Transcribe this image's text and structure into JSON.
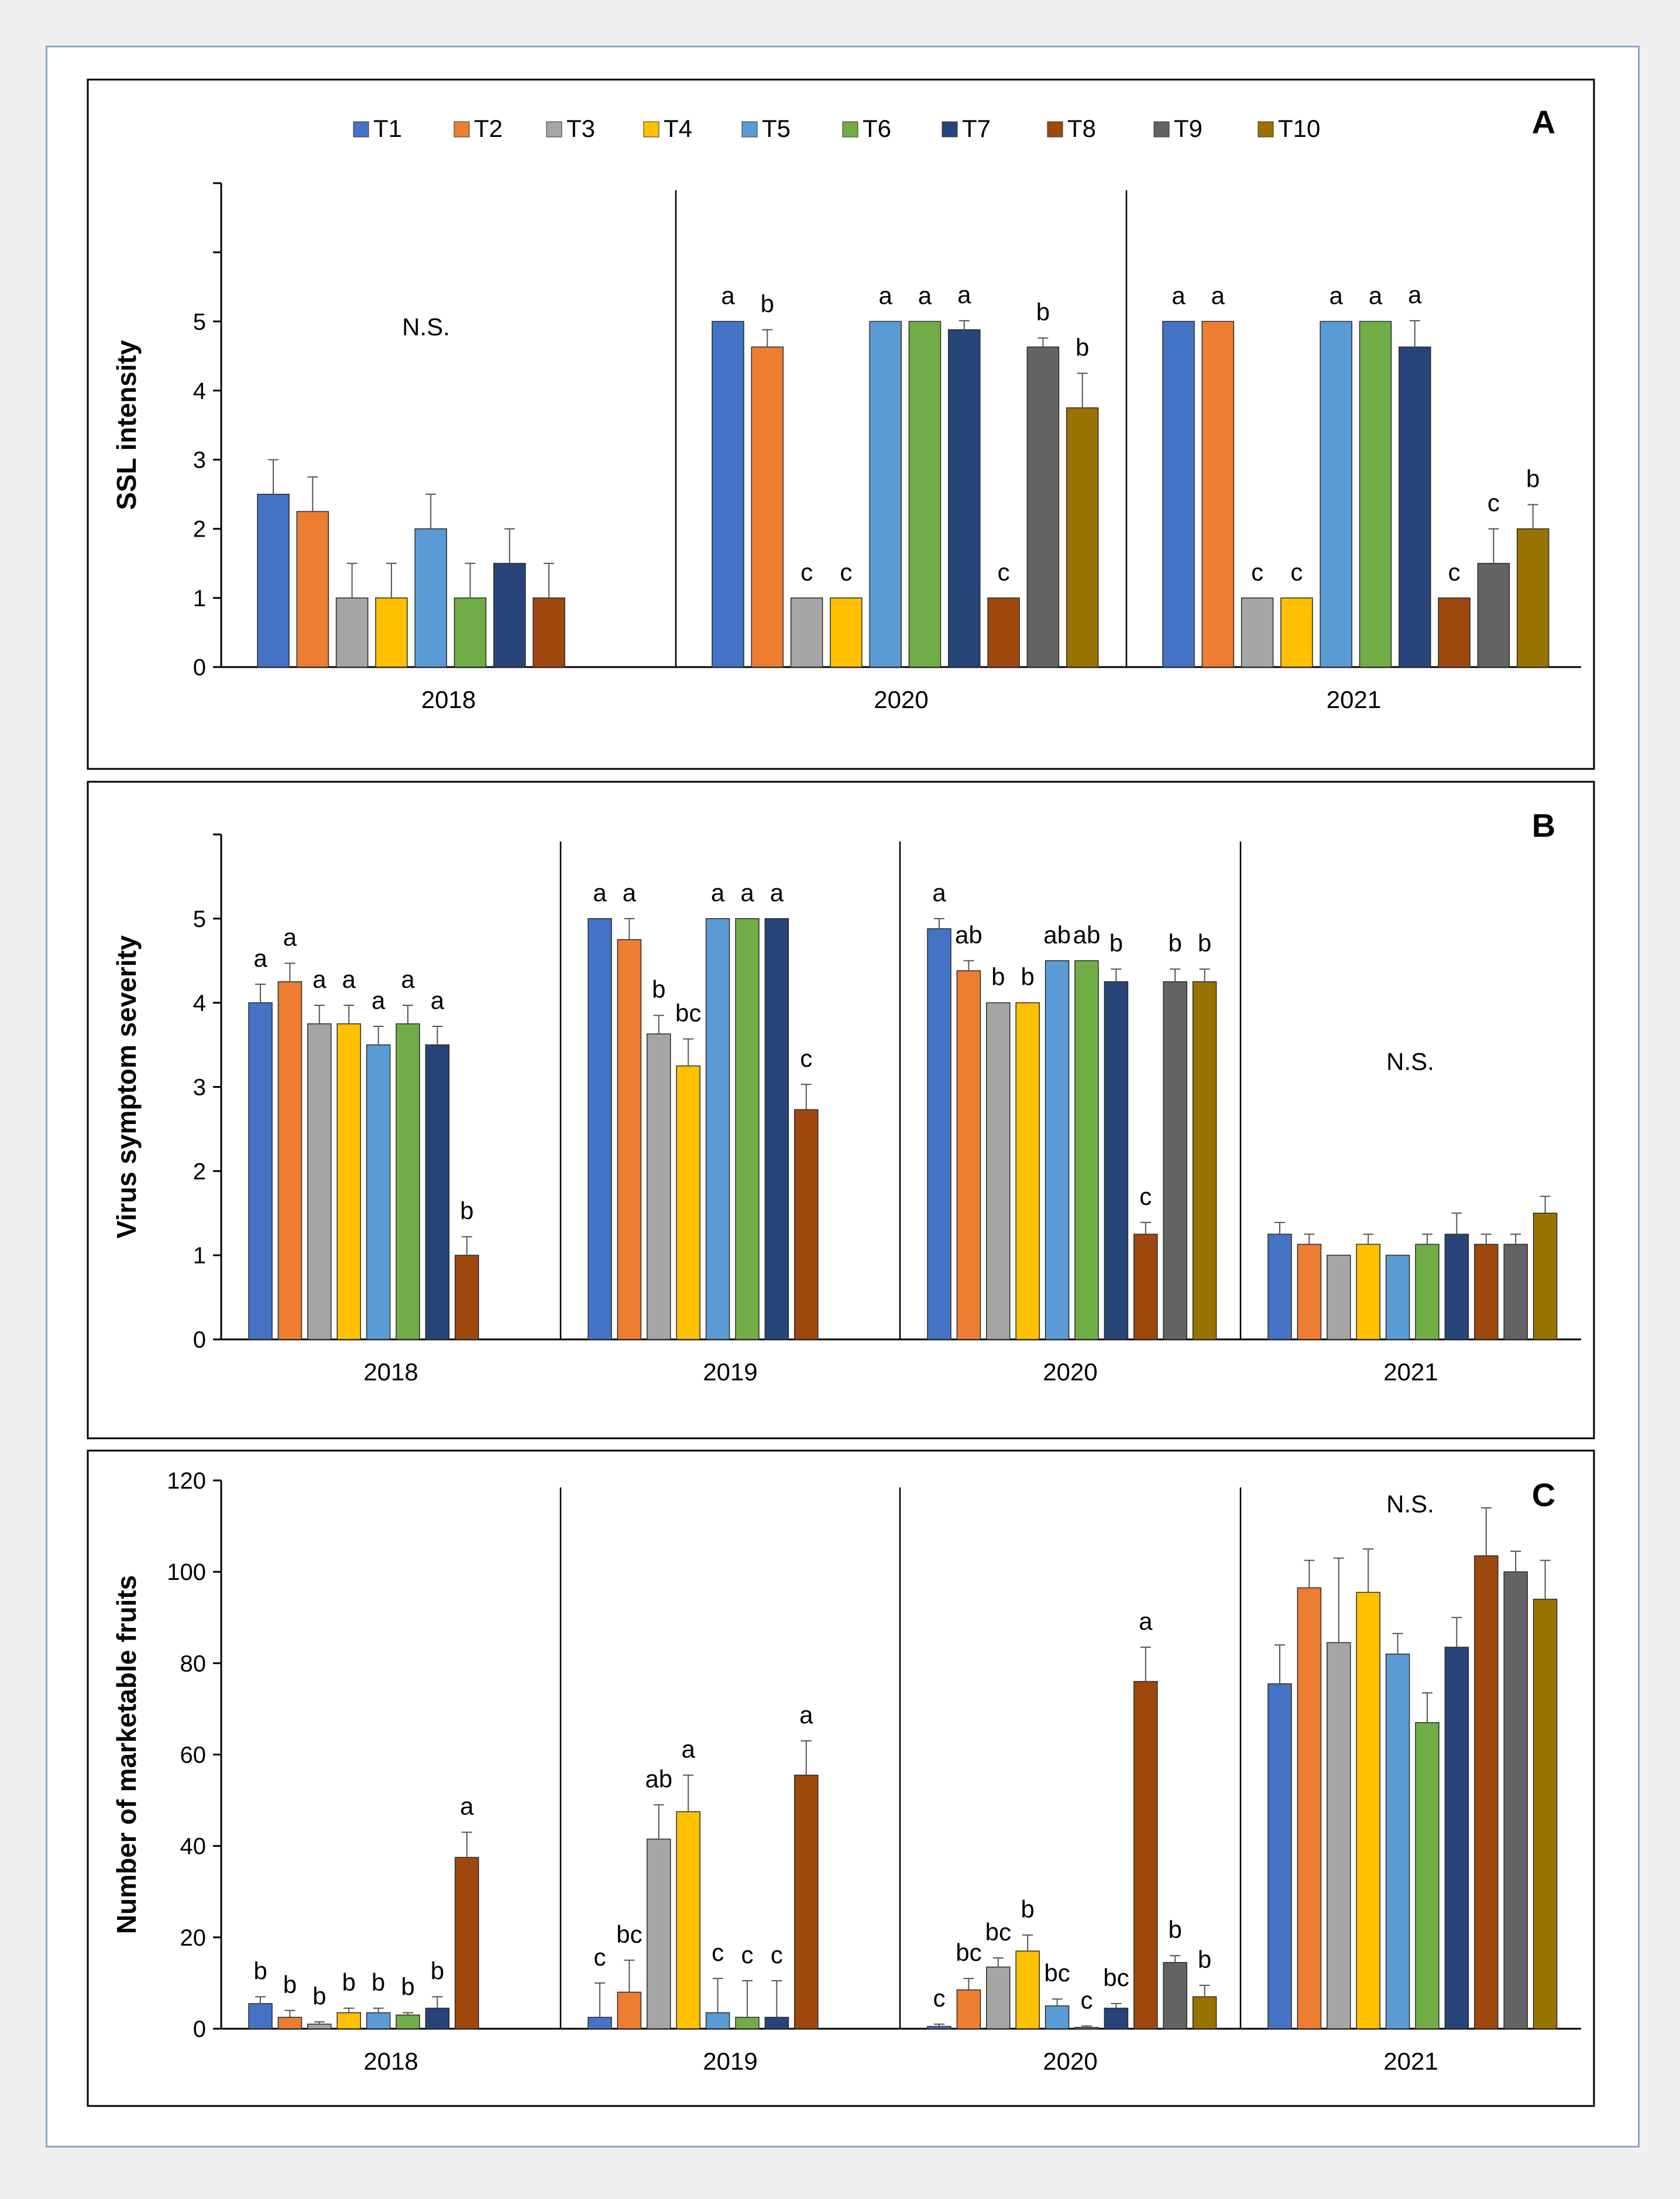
{
  "legend": {
    "items": [
      "T1",
      "T2",
      "T3",
      "T4",
      "T5",
      "T6",
      "T7",
      "T8",
      "T9",
      "T10"
    ],
    "colors": [
      "#4472c4",
      "#ed7d31",
      "#a5a5a5",
      "#ffc000",
      "#5b9bd5",
      "#70ad47",
      "#264478",
      "#9e480e",
      "#636363",
      "#997300"
    ]
  },
  "chart_data": [
    {
      "type": "bar",
      "panel": "A",
      "ylabel": "SSL intensity",
      "ylim": [
        0,
        7
      ],
      "yticks": [
        0,
        1,
        2,
        3,
        4,
        5
      ],
      "groups": [
        {
          "year": "2018",
          "note": "N.S.",
          "values": [
            2.5,
            2.25,
            1,
            1,
            2,
            1,
            1.5,
            1,
            null,
            null
          ],
          "errors": [
            0.5,
            0.5,
            0.5,
            0.5,
            0.5,
            0.5,
            0.5,
            0.5,
            null,
            null
          ],
          "letters": [
            "",
            "",
            "",
            "",
            "",
            "",
            "",
            "",
            "",
            ""
          ]
        },
        {
          "year": "2020",
          "note": "",
          "values": [
            5,
            4.63,
            1,
            1,
            5,
            5,
            4.88,
            1,
            4.63,
            3.75
          ],
          "errors": [
            0,
            0.25,
            0,
            0,
            0,
            0,
            0.13,
            0,
            0.13,
            0.5
          ],
          "letters": [
            "a",
            "b",
            "c",
            "c",
            "a",
            "a",
            "a",
            "c",
            "b",
            "b"
          ]
        },
        {
          "year": "2021",
          "note": "",
          "values": [
            5,
            5,
            1,
            1,
            5,
            5,
            4.63,
            1,
            1.5,
            2
          ],
          "errors": [
            0,
            0,
            0,
            0,
            0,
            0,
            0.38,
            0,
            0.5,
            0.35
          ],
          "letters": [
            "a",
            "a",
            "c",
            "c",
            "a",
            "a",
            "a",
            "c",
            "c",
            "b"
          ]
        }
      ]
    },
    {
      "type": "bar",
      "panel": "B",
      "ylabel": "Virus symptom severity",
      "ylim": [
        0,
        6
      ],
      "yticks": [
        0,
        1,
        2,
        3,
        4,
        5
      ],
      "groups": [
        {
          "year": "2018",
          "note": "",
          "values": [
            4,
            4.25,
            3.75,
            3.75,
            3.5,
            3.75,
            3.5,
            1,
            null,
            null
          ],
          "errors": [
            0.22,
            0.22,
            0.22,
            0.22,
            0.22,
            0.22,
            0.22,
            0.22,
            null,
            null
          ],
          "letters": [
            "a",
            "a",
            "a",
            "a",
            "a",
            "a",
            "a",
            "b",
            "",
            ""
          ]
        },
        {
          "year": "2019",
          "note": "",
          "values": [
            5,
            4.75,
            3.63,
            3.25,
            5,
            5,
            5,
            2.73,
            null,
            null
          ],
          "errors": [
            0,
            0.25,
            0.22,
            0.32,
            0,
            0,
            0,
            0.3,
            null,
            null
          ],
          "letters": [
            "a",
            "a",
            "b",
            "bc",
            "a",
            "a",
            "a",
            "c",
            "",
            ""
          ]
        },
        {
          "year": "2020",
          "note": "",
          "values": [
            4.88,
            4.38,
            4,
            4,
            4.5,
            4.5,
            4.25,
            1.25,
            4.25,
            4.25
          ],
          "errors": [
            0.12,
            0.12,
            0,
            0,
            0,
            0,
            0.15,
            0.14,
            0.15,
            0.15
          ],
          "letters": [
            "a",
            "ab",
            "b",
            "b",
            "ab",
            "ab",
            "b",
            "c",
            "b",
            "b"
          ]
        },
        {
          "year": "2021",
          "note": "N.S.",
          "values": [
            1.25,
            1.13,
            1,
            1.13,
            1,
            1.13,
            1.25,
            1.13,
            1.13,
            1.5
          ],
          "errors": [
            0.14,
            0.12,
            0,
            0.12,
            0,
            0.12,
            0.25,
            0.12,
            0.12,
            0.2
          ],
          "letters": [
            "",
            "",
            "",
            "",
            "",
            "",
            "",
            "",
            "",
            ""
          ]
        }
      ]
    },
    {
      "type": "bar",
      "panel": "C",
      "ylabel": "Number of marketable fruits",
      "ylim": [
        0,
        120
      ],
      "yticks": [
        0,
        20,
        40,
        60,
        80,
        100,
        120
      ],
      "groups": [
        {
          "year": "2018",
          "note": "",
          "values": [
            5.5,
            2.5,
            1,
            3.5,
            3.5,
            3,
            4.5,
            37.5,
            null,
            null
          ],
          "errors": [
            1.5,
            1.5,
            0.5,
            1,
            1,
            0.5,
            2.5,
            5.5,
            null,
            null
          ],
          "letters": [
            "b",
            "b",
            "b",
            "b",
            "b",
            "b",
            "b",
            "a",
            "",
            ""
          ]
        },
        {
          "year": "2019",
          "note": "",
          "values": [
            2.5,
            8,
            41.5,
            47.5,
            3.5,
            2.5,
            2.5,
            55.5,
            null,
            null
          ],
          "errors": [
            7.5,
            7,
            7.5,
            8,
            7.5,
            8,
            8,
            7.5,
            null,
            null
          ],
          "letters": [
            "c",
            "bc",
            "ab",
            "a",
            "c",
            "c",
            "c",
            "a",
            "",
            ""
          ]
        },
        {
          "year": "2020",
          "note": "",
          "values": [
            0.5,
            8.5,
            13.5,
            17,
            5,
            0.3,
            4.5,
            76,
            14.5,
            7
          ],
          "errors": [
            0.5,
            2.5,
            2,
            3.5,
            1.5,
            0.3,
            1,
            7.5,
            1.5,
            2.5
          ],
          "letters": [
            "c",
            "bc",
            "bc",
            "b",
            "bc",
            "c",
            "bc",
            "a",
            "b",
            "b"
          ]
        },
        {
          "year": "2021",
          "note": "N.S.",
          "values": [
            75.5,
            96.5,
            84.5,
            95.5,
            82,
            67,
            83.5,
            103.5,
            100,
            94
          ],
          "errors": [
            8.5,
            6,
            18.5,
            9.5,
            4.5,
            6.5,
            6.5,
            10.5,
            4.5,
            8.5
          ],
          "letters": [
            "",
            "",
            "",
            "",
            "",
            "",
            "",
            "",
            "",
            ""
          ]
        }
      ]
    }
  ]
}
